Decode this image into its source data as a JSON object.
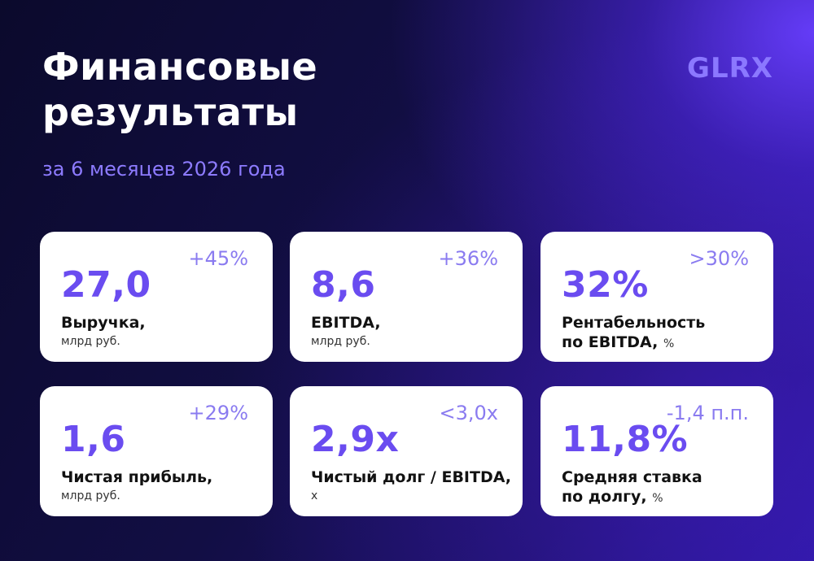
{
  "header": {
    "title_line1": "Финансовые",
    "title_line2": "результаты",
    "subtitle": "за 6 месяцев 2026 года",
    "logo": "GLRX"
  },
  "colors": {
    "accent": "#6a4cf0",
    "delta": "#8a7bf0",
    "card_bg": "#ffffff",
    "background_dark": "#0b0a2c",
    "background_glow": "#683eff"
  },
  "cards": [
    {
      "value": "27,0",
      "delta": "+45%",
      "label": "Выручка,",
      "unit": "млрд руб."
    },
    {
      "value": "8,6",
      "delta": "+36%",
      "label": "EBITDA,",
      "unit": "млрд руб."
    },
    {
      "value": "32%",
      "delta": ">30%",
      "label": "Рентабельность",
      "label2": "по EBITDA,",
      "unit": "%"
    },
    {
      "value": "1,6",
      "delta": "+29%",
      "label": "Чистая прибыль,",
      "unit": "млрд руб."
    },
    {
      "value": "2,9x",
      "delta": "<3,0x",
      "label": "Чистый долг / EBITDA,",
      "unit": "x"
    },
    {
      "value": "11,8%",
      "delta": "-1,4 п.п.",
      "label": "Средняя ставка",
      "label2": "по долгу,",
      "unit": "%"
    }
  ]
}
